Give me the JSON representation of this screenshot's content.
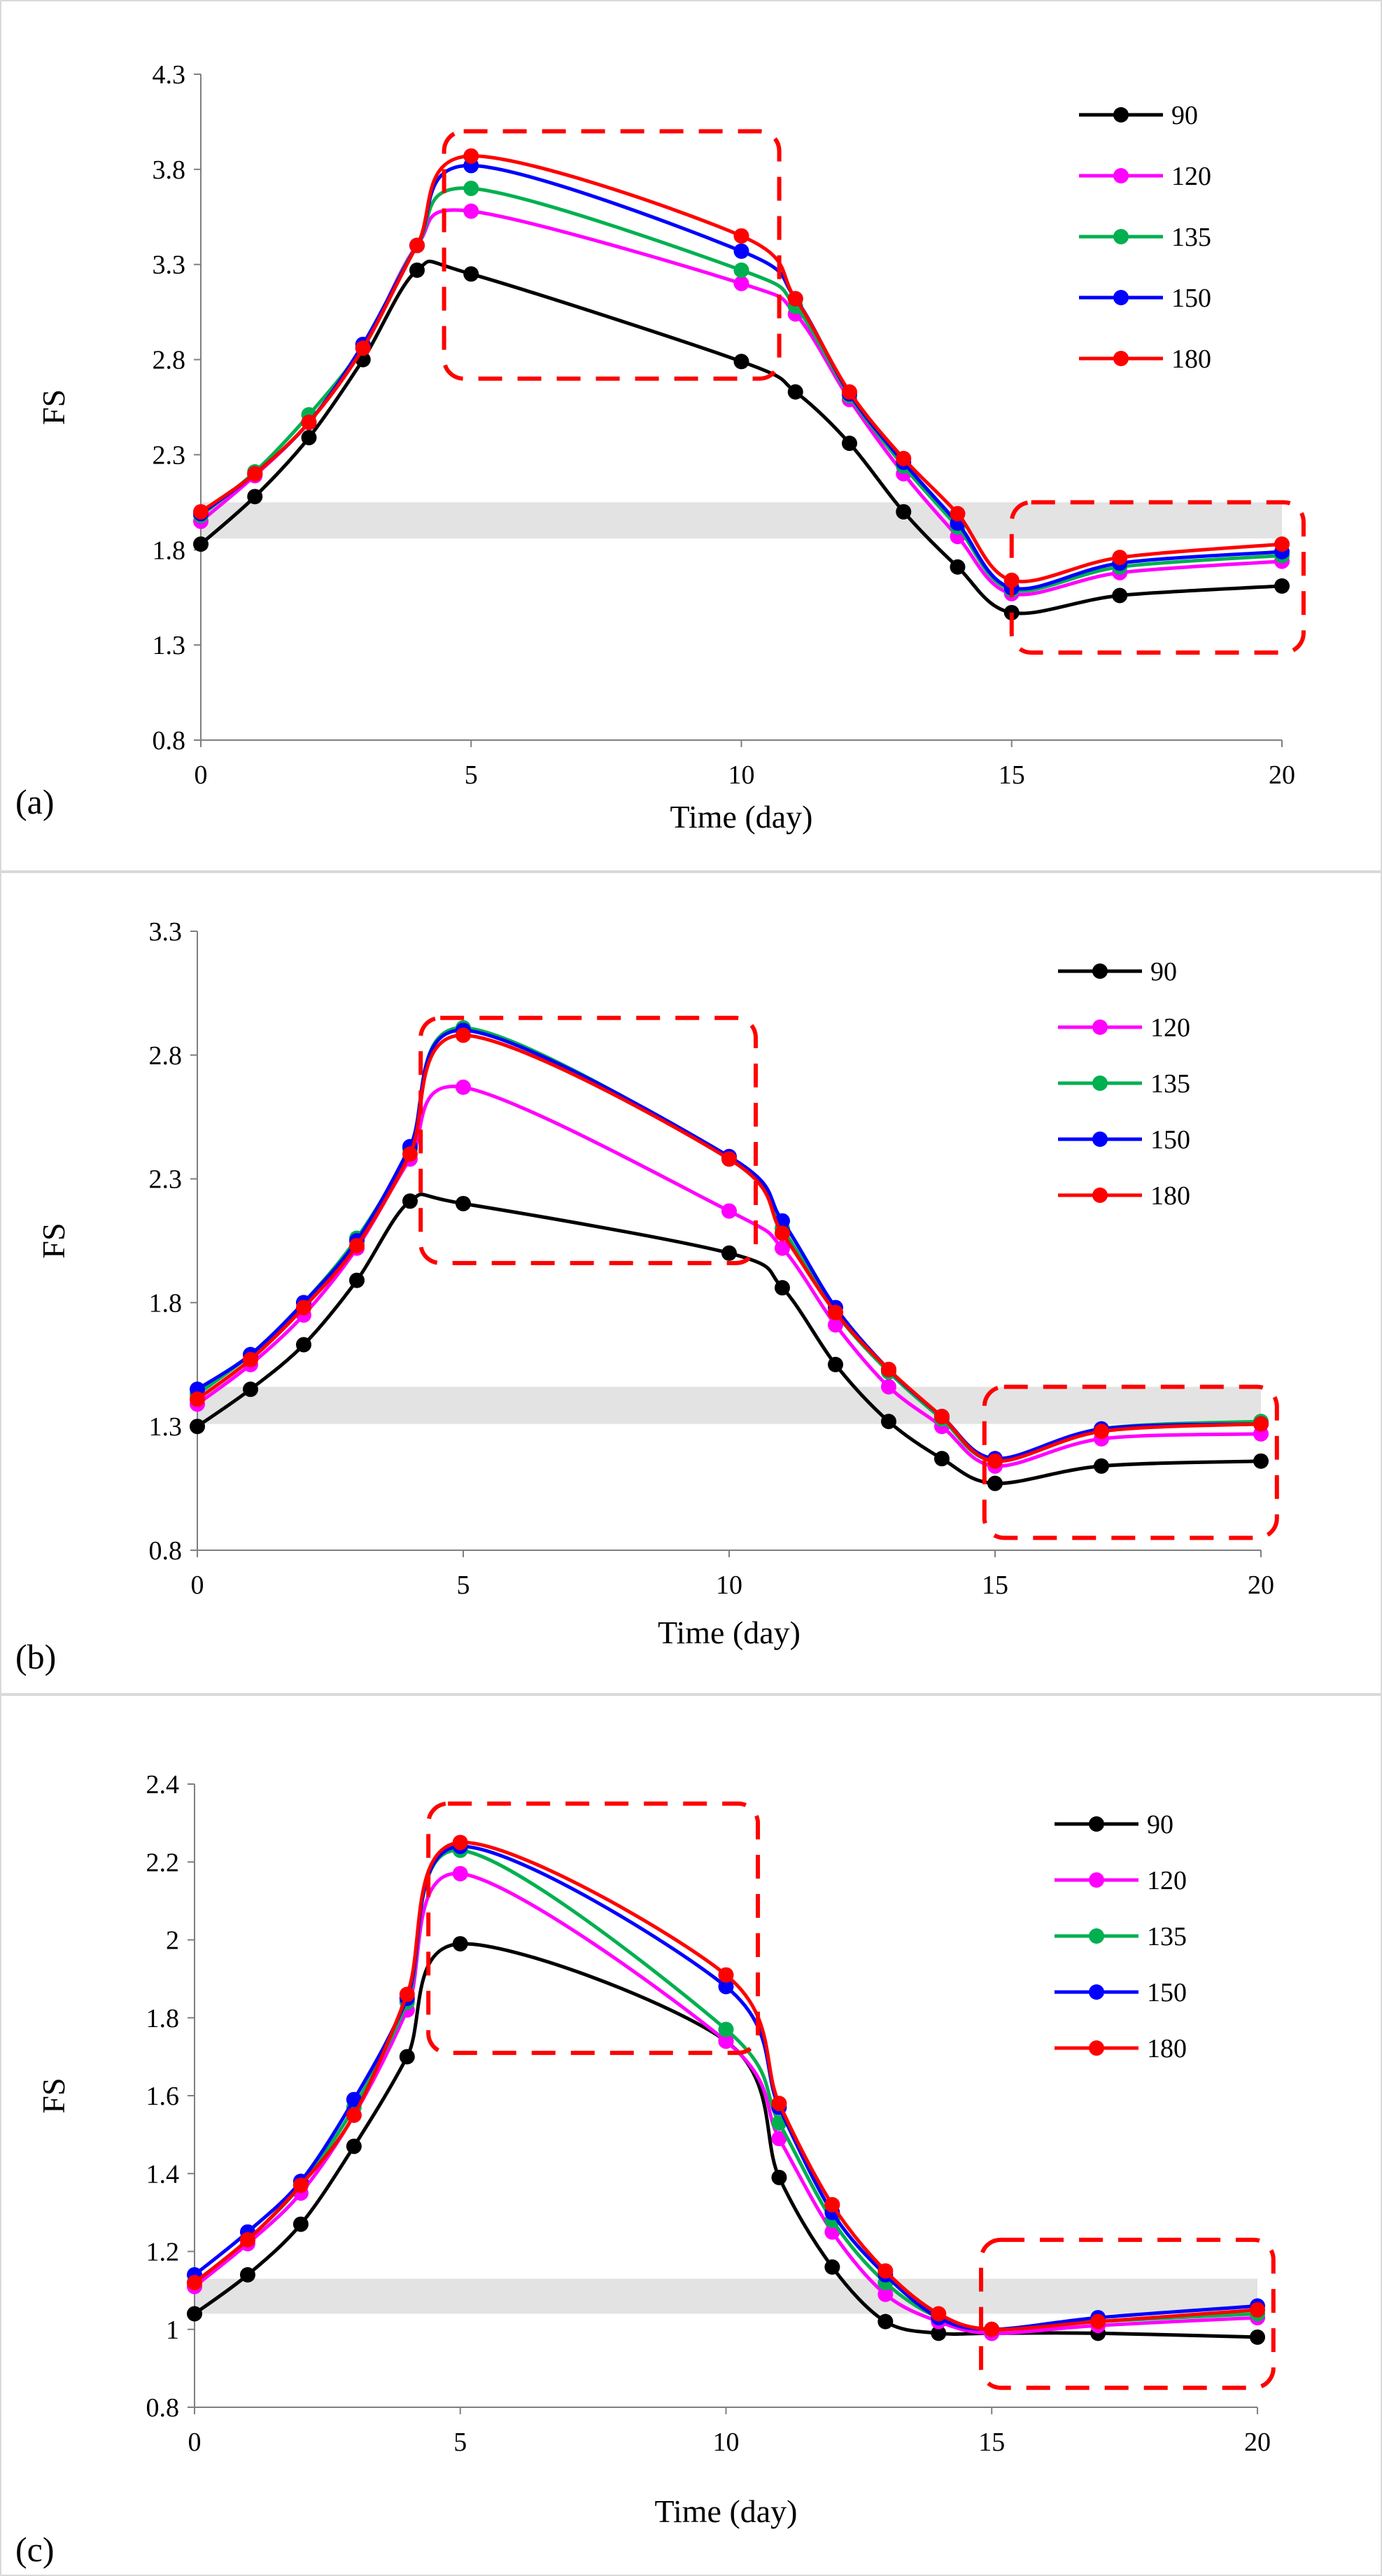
{
  "colors": {
    "series": [
      "#000000",
      "#ff00ff",
      "#00b050",
      "#0000ff",
      "#ff0000"
    ],
    "band": "#e3e3e3",
    "highlight_box": "#ff0000",
    "axis": "#7f7f7f"
  },
  "chart_data": [
    {
      "type": "line",
      "panel_label": "(a)",
      "title": "",
      "xlabel": "Time (day)",
      "ylabel": "FS",
      "xlim": [
        0,
        20
      ],
      "ylim": [
        0.8,
        4.3
      ],
      "x_ticks": [
        "0",
        "5",
        "10",
        "15",
        "20"
      ],
      "y_ticks": [
        "0.8",
        "1.3",
        "1.8",
        "2.3",
        "2.8",
        "3.3",
        "3.8",
        "4.3"
      ],
      "legend_position": "top-right",
      "shaded_band": [
        1.86,
        2.05
      ],
      "highlight_boxes": [
        {
          "x_range": [
            4.5,
            10.7
          ],
          "y_range": [
            2.7,
            4.0
          ]
        },
        {
          "x_range": [
            15.0,
            20.4
          ],
          "y_range": [
            1.26,
            2.05
          ]
        }
      ],
      "x": [
        0,
        1,
        2,
        3,
        4,
        5,
        10,
        11,
        12,
        13,
        14,
        15,
        17,
        20
      ],
      "series": [
        {
          "name": "90",
          "values": [
            1.83,
            2.08,
            2.39,
            2.8,
            3.27,
            3.25,
            2.79,
            2.63,
            2.36,
            2.0,
            1.71,
            1.47,
            1.56,
            1.61
          ]
        },
        {
          "name": "120",
          "values": [
            1.95,
            2.19,
            2.47,
            2.86,
            3.4,
            3.58,
            3.2,
            3.04,
            2.59,
            2.2,
            1.87,
            1.57,
            1.68,
            1.74
          ]
        },
        {
          "name": "135",
          "values": [
            1.98,
            2.21,
            2.51,
            2.87,
            3.4,
            3.7,
            3.27,
            3.08,
            2.61,
            2.24,
            1.92,
            1.59,
            1.71,
            1.77
          ]
        },
        {
          "name": "150",
          "values": [
            1.99,
            2.2,
            2.47,
            2.88,
            3.4,
            3.82,
            3.37,
            3.12,
            2.62,
            2.26,
            1.94,
            1.6,
            1.73,
            1.79
          ]
        },
        {
          "name": "180",
          "values": [
            2.0,
            2.2,
            2.47,
            2.86,
            3.4,
            3.87,
            3.45,
            3.12,
            2.63,
            2.28,
            1.99,
            1.64,
            1.76,
            1.83
          ]
        }
      ]
    },
    {
      "type": "line",
      "panel_label": "(b)",
      "title": "",
      "xlabel": "Time (day)",
      "ylabel": "FS",
      "xlim": [
        0,
        20
      ],
      "ylim": [
        0.8,
        3.3
      ],
      "x_ticks": [
        "0",
        "5",
        "10",
        "15",
        "20"
      ],
      "y_ticks": [
        "0.8",
        "1.3",
        "1.8",
        "2.3",
        "2.8",
        "3.3"
      ],
      "legend_position": "top-right",
      "shaded_band": [
        1.31,
        1.46
      ],
      "highlight_boxes": [
        {
          "x_range": [
            4.2,
            10.5
          ],
          "y_range": [
            1.96,
            2.95
          ]
        },
        {
          "x_range": [
            14.8,
            20.3
          ],
          "y_range": [
            0.85,
            1.46
          ]
        }
      ],
      "x": [
        0,
        1,
        2,
        3,
        4,
        5,
        10,
        11,
        12,
        13,
        14,
        15,
        17,
        20
      ],
      "series": [
        {
          "name": "90",
          "values": [
            1.3,
            1.45,
            1.63,
            1.89,
            2.21,
            2.2,
            2.0,
            1.86,
            1.55,
            1.32,
            1.17,
            1.07,
            1.14,
            1.16
          ]
        },
        {
          "name": "120",
          "values": [
            1.39,
            1.55,
            1.75,
            2.02,
            2.38,
            2.67,
            2.17,
            2.02,
            1.71,
            1.46,
            1.3,
            1.14,
            1.25,
            1.27
          ]
        },
        {
          "name": "135",
          "values": [
            1.43,
            1.59,
            1.8,
            2.06,
            2.42,
            2.91,
            2.38,
            2.1,
            1.76,
            1.52,
            1.33,
            1.16,
            1.29,
            1.32
          ]
        },
        {
          "name": "150",
          "values": [
            1.45,
            1.59,
            1.8,
            2.05,
            2.43,
            2.9,
            2.39,
            2.13,
            1.78,
            1.53,
            1.34,
            1.17,
            1.29,
            1.31
          ]
        },
        {
          "name": "180",
          "values": [
            1.41,
            1.57,
            1.78,
            2.03,
            2.4,
            2.88,
            2.38,
            2.08,
            1.76,
            1.53,
            1.34,
            1.16,
            1.28,
            1.31
          ]
        }
      ]
    },
    {
      "type": "line",
      "panel_label": "(c)",
      "title": "",
      "xlabel": "Time (day)",
      "ylabel": "FS",
      "xlim": [
        0,
        20
      ],
      "ylim": [
        0.8,
        2.4
      ],
      "x_ticks": [
        "0",
        "5",
        "10",
        "15",
        "20"
      ],
      "y_ticks": [
        "0.8",
        "1",
        "1.2",
        "1.4",
        "1.6",
        "1.8",
        "2",
        "2.2",
        "2.4"
      ],
      "legend_position": "top-right",
      "shaded_band": [
        1.04,
        1.13
      ],
      "highlight_boxes": [
        {
          "x_range": [
            4.4,
            10.6
          ],
          "y_range": [
            1.71,
            2.35
          ]
        },
        {
          "x_range": [
            14.8,
            20.3
          ],
          "y_range": [
            0.85,
            1.23
          ]
        }
      ],
      "x": [
        0,
        1,
        2,
        3,
        4,
        5,
        10,
        11,
        12,
        13,
        14,
        15,
        17,
        20
      ],
      "series": [
        {
          "name": "90",
          "values": [
            1.04,
            1.14,
            1.27,
            1.47,
            1.7,
            1.99,
            1.74,
            1.39,
            1.16,
            1.02,
            0.99,
            0.99,
            0.99,
            0.98
          ]
        },
        {
          "name": "120",
          "values": [
            1.11,
            1.22,
            1.35,
            1.55,
            1.82,
            2.17,
            1.74,
            1.49,
            1.25,
            1.09,
            1.02,
            0.99,
            1.01,
            1.03
          ]
        },
        {
          "name": "135",
          "values": [
            1.12,
            1.23,
            1.37,
            1.57,
            1.84,
            2.23,
            1.77,
            1.53,
            1.28,
            1.12,
            1.03,
            1.0,
            1.02,
            1.04
          ]
        },
        {
          "name": "150",
          "values": [
            1.14,
            1.25,
            1.38,
            1.59,
            1.85,
            2.24,
            1.88,
            1.57,
            1.3,
            1.14,
            1.03,
            1.0,
            1.03,
            1.06
          ]
        },
        {
          "name": "180",
          "values": [
            1.12,
            1.23,
            1.37,
            1.55,
            1.86,
            2.25,
            1.91,
            1.58,
            1.32,
            1.15,
            1.04,
            1.0,
            1.02,
            1.05
          ]
        }
      ]
    }
  ]
}
